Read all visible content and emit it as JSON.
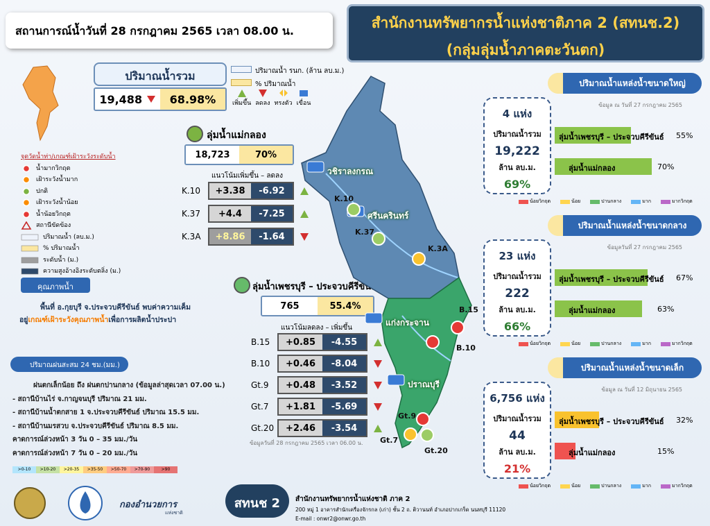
{
  "header": {
    "situation": "สถานการณ์น้ำวันที่   28 กรกฎาคม 2565  เวลา 08.00 น.",
    "title_line1": "สำนักงานทรัพยากรน้ำแห่งชาติภาค 2 (สทนช.2)",
    "title_line2": "(กลุ่มลุ่มน้ำภาคตะวันตก)"
  },
  "total": {
    "label": "ปริมาณน้ำรวม",
    "volume": "19,488",
    "percent": "68.98%"
  },
  "top_legend": {
    "volume": "ปริมาณน้ำ รนก. (ล้าน ลบ.ม.)",
    "percent": "% ปริมาณน้ำ",
    "trends": [
      "เพิ่มขึ้น",
      "ลดลง",
      "ทรงตัว",
      "เขื่อน"
    ]
  },
  "side_legend": {
    "title": "จุดวัดน้ำท่า/เกณฑ์เฝ้าระวังระดับน้ำ",
    "items": [
      {
        "text": "น้ำมากวิกฤต",
        "color": "#e53935"
      },
      {
        "text": "เฝ้าระวังน้ำมาก",
        "color": "#fb8c00"
      },
      {
        "text": "ปกติ",
        "color": "#7cb342"
      },
      {
        "text": "เฝ้าระวังน้ำน้อย",
        "color": "#fb8c00"
      },
      {
        "text": "น้ำน้อยวิกฤต",
        "color": "#e53935"
      },
      {
        "text": "สถานีขัดข้อง",
        "color": "#c62828"
      },
      {
        "text": "ปริมาณน้ำ (ลบ.ม.)",
        "color": "#eef3fb"
      },
      {
        "text": "% ปริมาณน้ำ",
        "color": "#fbe7a1"
      },
      {
        "text": "ระดับน้ำ (ม.)",
        "color": "#9e9e9e"
      },
      {
        "text": "ความสูงอ้างอิงระดับตลิ่ง (ม.)",
        "color": "#2e4a6b"
      }
    ]
  },
  "water_quality": {
    "title": "คุณภาพน้ำ",
    "line1": "พื้นที่ อ.กุยบุรี จ.ประจวบคีรีขันธ์ พบค่าความเค็ม",
    "line2_a": "อยู่",
    "line2_b": "เกณฑ์เฝ้าระวังคุณภาพน้ำ",
    "line2_c": "เพื่อการผลิตน้ำประปา"
  },
  "rain": {
    "title": "ปริมาณฝนสะสม 24 ชม.(มม.)",
    "lines": [
      "ฝนตกเล็กน้อย ถึง ฝนตกปานกลาง (ข้อมูลล่าสุดเวลา 07.00 น.)",
      "- สถานีบ้านไร่ จ.กาญจนบุรี ปริมาณ 21 มม.",
      "- สถานีบ้านน้ำตกสาย 1 จ.ประจวบคีรีขันธ์ ปริมาณ 15.5 มม.",
      "- สถานีบ้านมรสวบ จ.ประจวบคีรีขันธ์ ปริมาณ 8.5 มม.",
      "คาดการณ์ล่วงหน้า 3 วัน  0 – 35 มม./วัน",
      "คาดการณ์ล่วงหน้า 7 วัน  0 – 20 มม./วัน"
    ],
    "scale": [
      {
        "label": ">0-10",
        "color": "#b3e5fc"
      },
      {
        "label": ">10-20",
        "color": "#c5e1a5"
      },
      {
        "label": ">20-35",
        "color": "#fff59d"
      },
      {
        "label": ">35-50",
        "color": "#ffcc80"
      },
      {
        "label": ">50-70",
        "color": "#ffab91"
      },
      {
        "label": ">70-90",
        "color": "#ef9a9a"
      },
      {
        "label": ">90",
        "color": "#e57373"
      }
    ]
  },
  "mae_klong": {
    "name": "ลุ่มน้ำแม่กลอง",
    "volume": "18,723",
    "percent": "70%",
    "trend_header": "แนวโน้มเพิ่มขึ้น – ลดลง",
    "stations": [
      {
        "code": "K.10",
        "change": "+3.38",
        "bank": "-6.92",
        "trend": "up"
      },
      {
        "code": "K.37",
        "change": "+4.4",
        "bank": "-7.25",
        "trend": "up"
      },
      {
        "code": "K.3A",
        "change": "+8.86",
        "bank": "-1.64",
        "trend": "down"
      }
    ]
  },
  "phetchaburi": {
    "name": "ลุ่มน้ำเพชรบุรี – ประจวบคีรีขันธ์",
    "volume": "765",
    "percent": "55.4%",
    "trend_header": "แนวโน้มลดลง – เพิ่มขึ้น",
    "stations": [
      {
        "code": "B.15",
        "change": "+0.85",
        "bank": "-4.55",
        "trend": "up"
      },
      {
        "code": "B.10",
        "change": "+0.46",
        "bank": "-8.04",
        "trend": "down"
      },
      {
        "code": "Gt.9",
        "change": "+0.48",
        "bank": "-3.52",
        "trend": "down"
      },
      {
        "code": "Gt.7",
        "change": "+1.81",
        "bank": "-5.69",
        "trend": "down"
      },
      {
        "code": "Gt.20",
        "change": "+2.46",
        "bank": "-3.54",
        "trend": "up"
      }
    ],
    "note": "ข้อมูลวันที่ 28 กรกฎาคม 2565 เวลา 06.00 น."
  },
  "map": {
    "dams": [
      "วชิราลงกรณ",
      "ศรีนครินทร์",
      "แก่งกระจาน",
      "ปราณบุรี"
    ],
    "stations": [
      "K.10",
      "K.37",
      "K.3A",
      "B.15",
      "B.10",
      "Gt.9",
      "Gt.7",
      "Gt.20"
    ]
  },
  "reservoir_legend": [
    {
      "text": "น้อยวิกฤต",
      "color": "#ef5350"
    },
    {
      "text": "น้อย",
      "color": "#ffd54f"
    },
    {
      "text": "ปานกลาง",
      "color": "#66bb6a"
    },
    {
      "text": "มาก",
      "color": "#64b5f6"
    },
    {
      "text": "มากวิกฤต",
      "color": "#ba68c8"
    }
  ],
  "reservoirs": [
    {
      "title": "ปริมาณน้ำแหล่งน้ำขนาดใหญ่",
      "date": "ข้อมูล ณ วันที่   27 กรกฎาคม 2565",
      "count": "4 แห่ง",
      "total_label": "ปริมาณน้ำรวม",
      "total": "19,222",
      "unit": "ล้าน ลบ.ม.",
      "percent": "69%",
      "bars": [
        {
          "name": "ลุ่มน้ำเพชรบุรี – ประจวบคีรีขันธ์",
          "value": 55,
          "value_label": "55%",
          "color": "#8bc34a"
        },
        {
          "name": "ลุ่มน้ำแม่กลอง",
          "value": 70,
          "value_label": "70%",
          "color": "#8bc34a"
        }
      ]
    },
    {
      "title": "ปริมาณน้ำแหล่งน้ำขนาดกลาง",
      "date": "ข้อมูลวันที่ 27 กรกฎาคม  2565",
      "count": "23 แห่ง",
      "total_label": "ปริมาณน้ำรวม",
      "total": "222",
      "unit": "ล้าน ลบ.ม.",
      "percent": "66%",
      "bars": [
        {
          "name": "ลุ่มน้ำเพชรบุรี – ประจวบคีรีขันธ์",
          "value": 67,
          "value_label": "67%",
          "color": "#8bc34a"
        },
        {
          "name": "ลุ่มน้ำแม่กลอง",
          "value": 63,
          "value_label": "63%",
          "color": "#8bc34a"
        }
      ]
    },
    {
      "title": "ปริมาณน้ำแหล่งน้ำขนาดเล็ก",
      "date": "ข้อมูล ณ วันที่ 12 มิถุนายน 2565",
      "count": "6,756 แห่ง",
      "total_label": "ปริมาณน้ำรวม",
      "total": "44",
      "unit": "ล้าน ลบ.ม.",
      "percent": "21%",
      "bars": [
        {
          "name": "ลุ่มน้ำเพชรบุรี – ประจวบคีรีขันธ์",
          "value": 32,
          "value_label": "32%",
          "color": "#f9c22e"
        },
        {
          "name": "ลุ่มน้ำแม่กลอง",
          "value": 15,
          "value_label": "15%",
          "color": "#ef5350"
        }
      ]
    }
  ],
  "footer": {
    "command": "กองอำนวยการ",
    "command_sub": "แห่งชาติ",
    "badge": "สทนช 2",
    "org": "สำนักงานทรัพยากรน้ำแห่งชาติ ภาค 2",
    "address": "200 หมู่ 1 อาคารสำนักเครื่องจักรกล (เก่า) ชั้น 2 ถ. ติวานนท์ อำเภอปากเกร็ด นนทบุรี 11120",
    "email": "E-mail : onwr2@onwr.go.th"
  }
}
